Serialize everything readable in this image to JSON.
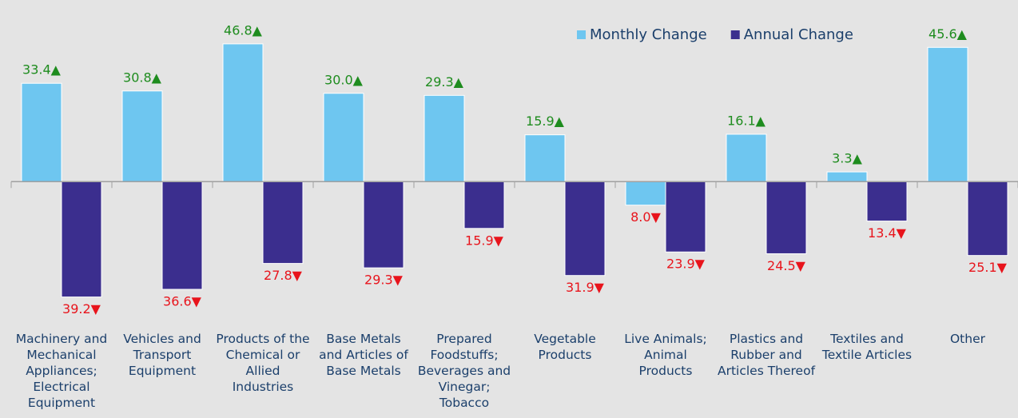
{
  "chart_data": {
    "type": "bar",
    "categories": [
      "Machinery and Mechanical Appliances; Electrical Equipment",
      "Vehicles and Transport Equipment",
      "Products of the Chemical or Allied Industries",
      "Base Metals and Articles of Base Metals",
      "Prepared Foodstuffs; Beverages and Vinegar; Tobacco",
      "Vegetable Products",
      "Live Animals; Animal Products",
      "Plastics and Rubber and Articles Thereof",
      "Textiles and Textile Articles",
      "Other"
    ],
    "series": [
      {
        "name": "Monthly Change",
        "color": "#6ec6f0",
        "values": [
          33.4,
          30.8,
          46.8,
          30.0,
          29.3,
          15.9,
          -8.0,
          16.1,
          3.3,
          45.6
        ],
        "value_labels": [
          "33.4▲",
          "30.8▲",
          "46.8▲",
          "30.0▲",
          "29.3▲",
          "15.9▲",
          "8.0▼",
          "16.1▲",
          "3.3▲",
          "45.6▲"
        ]
      },
      {
        "name": "Annual Change",
        "color": "#3b2e8e",
        "values": [
          -39.2,
          -36.6,
          -27.8,
          -29.3,
          -15.9,
          -31.9,
          -23.9,
          -24.5,
          -13.4,
          -25.1
        ],
        "value_labels": [
          "39.2▼",
          "36.6▼",
          "27.8▼",
          "29.3▼",
          "15.9▼",
          "31.9▼",
          "23.9▼",
          "24.5▼",
          "13.4▼",
          "25.1▼"
        ]
      }
    ],
    "ylim": [
      -48,
      56
    ],
    "legend": "top-right"
  }
}
